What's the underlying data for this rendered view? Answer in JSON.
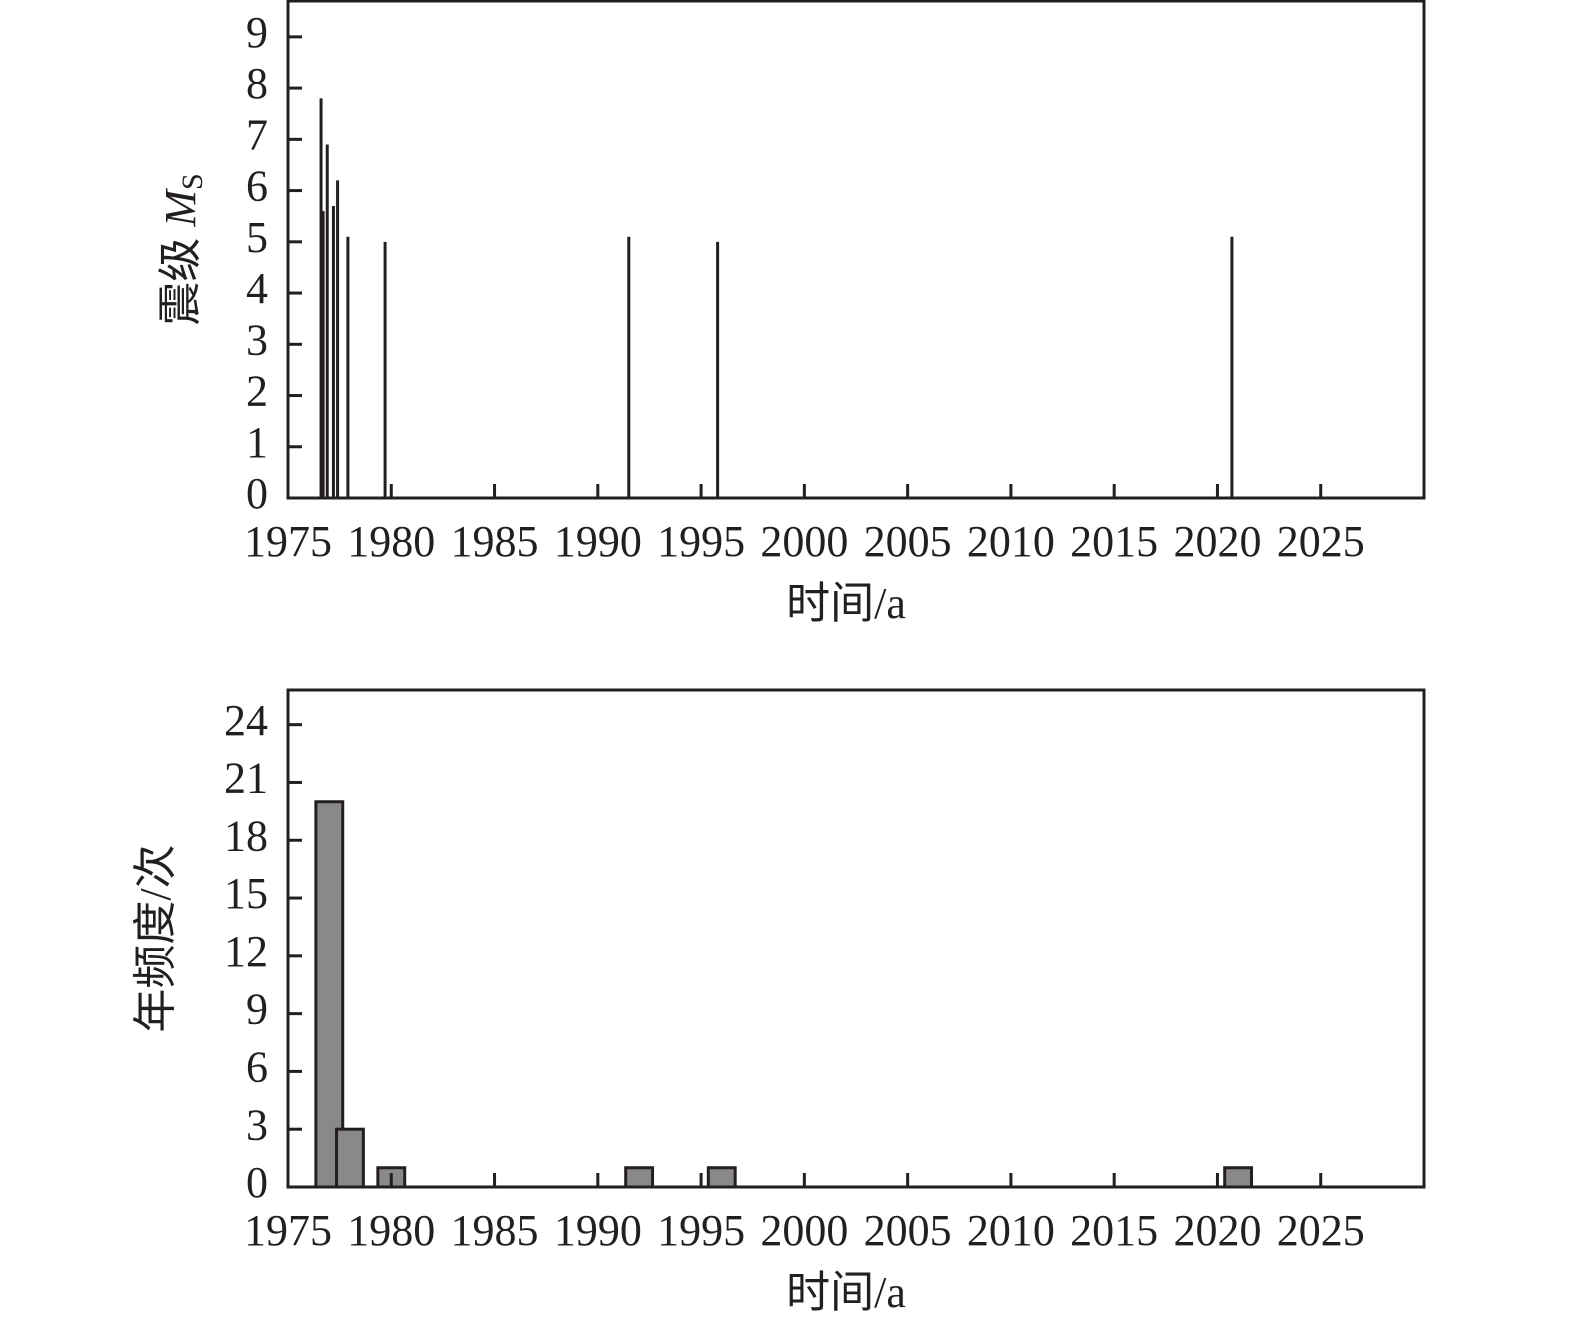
{
  "chart_data": [
    {
      "type": "stem",
      "y_label": "震级",
      "y_label_symbol": "M",
      "y_label_subscript": "S",
      "x_label": "时间/a",
      "x": [
        1976.6,
        1976.7,
        1976.9,
        1977.2,
        1977.4,
        1977.9,
        1979.7,
        1991.5,
        1995.8,
        2020.7
      ],
      "values": [
        7.8,
        5.6,
        6.9,
        5.7,
        6.2,
        5.1,
        5.0,
        5.1,
        5.0,
        5.1
      ],
      "color": "#231f20",
      "xlim": [
        1975,
        2030
      ],
      "xticks": [
        1975,
        1980,
        1985,
        1990,
        1995,
        2000,
        2005,
        2010,
        2015,
        2020,
        2025
      ],
      "ylim": [
        0,
        9.7
      ],
      "yticks": [
        0,
        1,
        2,
        3,
        4,
        5,
        6,
        7,
        8,
        9
      ]
    },
    {
      "type": "bar",
      "y_label": "年频度/次",
      "x_label": "时间/a",
      "x": [
        1977,
        1978,
        1980,
        1992,
        1996,
        2021
      ],
      "values": [
        20,
        3,
        1,
        1,
        1,
        1
      ],
      "color": "#8a8888",
      "xlim": [
        1975,
        2030
      ],
      "xticks": [
        1975,
        1980,
        1985,
        1990,
        1995,
        2000,
        2005,
        2010,
        2015,
        2020,
        2025
      ],
      "ylim": [
        0,
        25.8
      ],
      "yticks": [
        0,
        3,
        6,
        9,
        12,
        15,
        18,
        21,
        24
      ]
    }
  ]
}
